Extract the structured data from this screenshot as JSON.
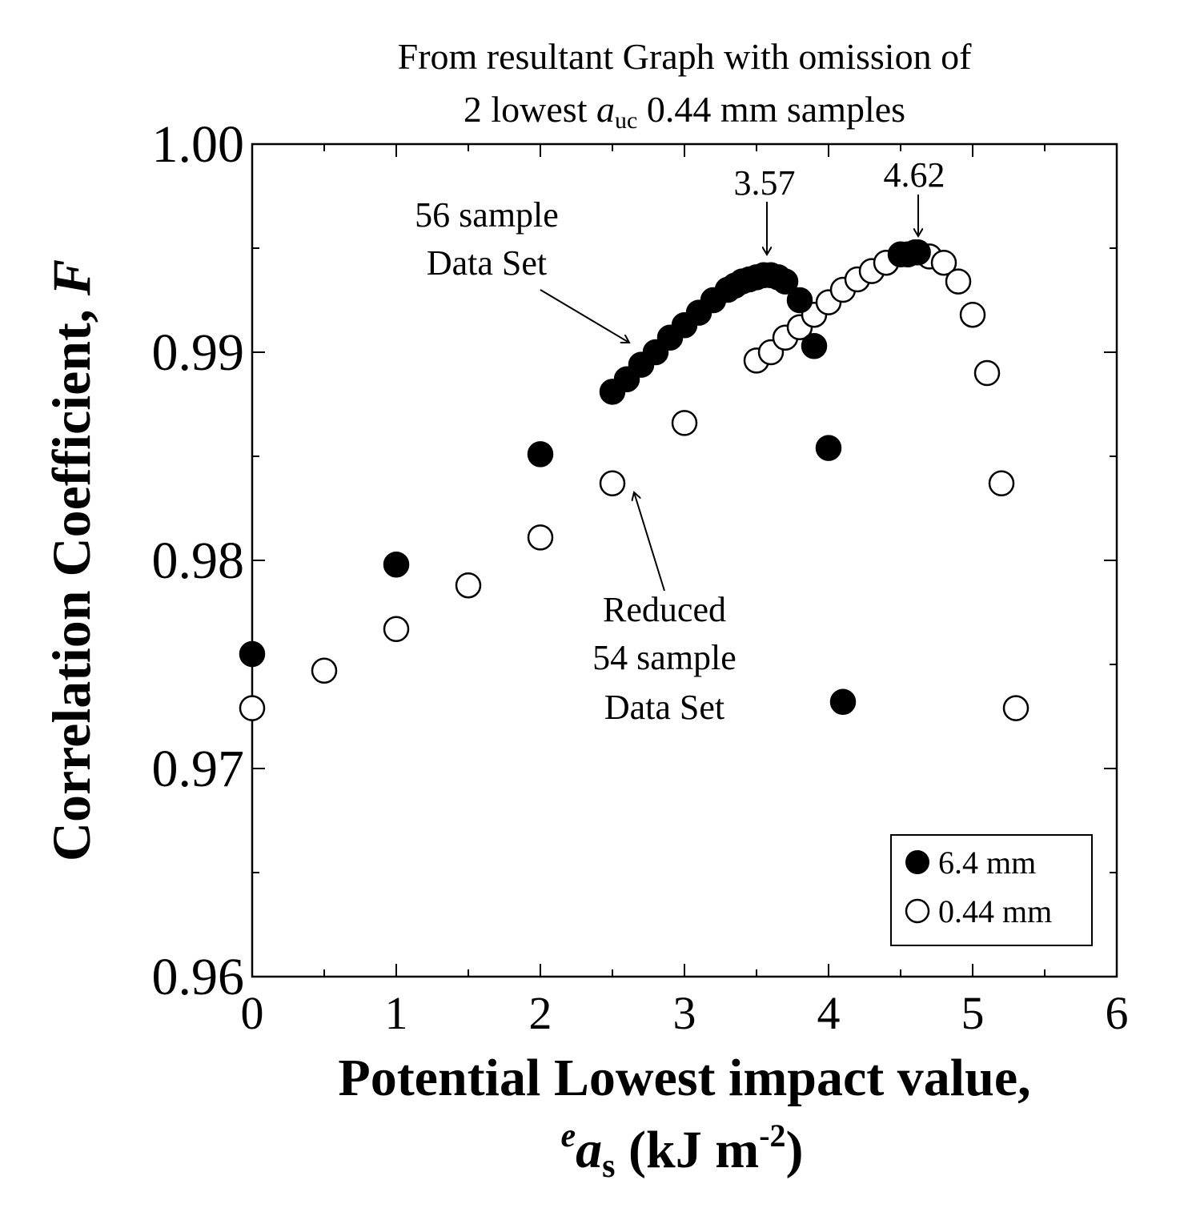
{
  "chart_data": {
    "type": "scatter",
    "title_line1": "From resultant Graph with omission of",
    "title_line2_prefix": "2 lowest ",
    "title_line2_var": "a",
    "title_line2_sub": "uc",
    "title_line2_suffix": " 0.44 mm samples",
    "xlabel_line1": "Potential Lowest impact value,",
    "xlabel_line2_sup": "e",
    "xlabel_line2_var": "a",
    "xlabel_line2_sub": "s",
    "xlabel_line2_unit": " (kJ m",
    "xlabel_line2_unit_sup": "-2",
    "xlabel_line2_close": ")",
    "ylabel_text": "Correlation Coefficient, ",
    "ylabel_var": "F",
    "xlim": [
      0,
      6
    ],
    "ylim": [
      0.96,
      1.0
    ],
    "xticks": [
      "0",
      "1",
      "2",
      "3",
      "4",
      "5",
      "6"
    ],
    "yticks": [
      "0.96",
      "0.97",
      "0.98",
      "0.99",
      "1.00"
    ],
    "legend_position": "bottom-right",
    "series": [
      {
        "name": "6.4 mm",
        "marker": "filled-circle",
        "points": [
          [
            0,
            0.9755
          ],
          [
            1,
            0.9798
          ],
          [
            2,
            0.9851
          ],
          [
            2.5,
            0.9881
          ],
          [
            2.6,
            0.9887
          ],
          [
            2.7,
            0.9894
          ],
          [
            2.8,
            0.99
          ],
          [
            2.9,
            0.9907
          ],
          [
            3.0,
            0.9913
          ],
          [
            3.1,
            0.9919
          ],
          [
            3.2,
            0.9925
          ],
          [
            3.3,
            0.993
          ],
          [
            3.35,
            0.9932
          ],
          [
            3.4,
            0.9934
          ],
          [
            3.45,
            0.9935
          ],
          [
            3.5,
            0.9936
          ],
          [
            3.55,
            0.9937
          ],
          [
            3.6,
            0.9937
          ],
          [
            3.65,
            0.9936
          ],
          [
            3.7,
            0.9934
          ],
          [
            3.8,
            0.9925
          ],
          [
            3.9,
            0.9903
          ],
          [
            4.0,
            0.9854
          ],
          [
            4.1,
            0.9732
          ],
          [
            4.5,
            0.9947
          ],
          [
            4.55,
            0.9947
          ],
          [
            4.6,
            0.9948
          ],
          [
            4.62,
            0.9948
          ]
        ]
      },
      {
        "name": "0.44 mm",
        "marker": "open-circle",
        "points": [
          [
            0,
            0.9729
          ],
          [
            0.5,
            0.9747
          ],
          [
            1.0,
            0.9767
          ],
          [
            1.5,
            0.9788
          ],
          [
            2.0,
            0.9811
          ],
          [
            2.5,
            0.9837
          ],
          [
            3.0,
            0.9866
          ],
          [
            3.5,
            0.9896
          ],
          [
            3.6,
            0.99
          ],
          [
            3.7,
            0.9907
          ],
          [
            3.8,
            0.9912
          ],
          [
            3.9,
            0.9918
          ],
          [
            4.0,
            0.9924
          ],
          [
            4.1,
            0.993
          ],
          [
            4.2,
            0.9935
          ],
          [
            4.3,
            0.9939
          ],
          [
            4.4,
            0.9943
          ],
          [
            4.7,
            0.9946
          ],
          [
            4.8,
            0.9943
          ],
          [
            4.9,
            0.9934
          ],
          [
            5.0,
            0.9918
          ],
          [
            5.1,
            0.989
          ],
          [
            5.2,
            0.9837
          ],
          [
            5.3,
            0.9729
          ]
        ]
      }
    ],
    "annotations": [
      {
        "lines": [
          "56 sample",
          "Data Set"
        ],
        "target": [
          2.62,
          0.9893
        ],
        "style": "arrow"
      },
      {
        "lines": [
          "Reduced",
          "54 sample",
          "Data Set"
        ],
        "target": [
          2.63,
          0.9833
        ],
        "style": "arrow"
      },
      {
        "lines": [
          "3.57"
        ],
        "target": [
          3.57,
          0.9943
        ],
        "style": "arrow-down"
      },
      {
        "lines": [
          "4.62"
        ],
        "target": [
          4.62,
          0.9955
        ],
        "style": "arrow-down"
      }
    ]
  }
}
